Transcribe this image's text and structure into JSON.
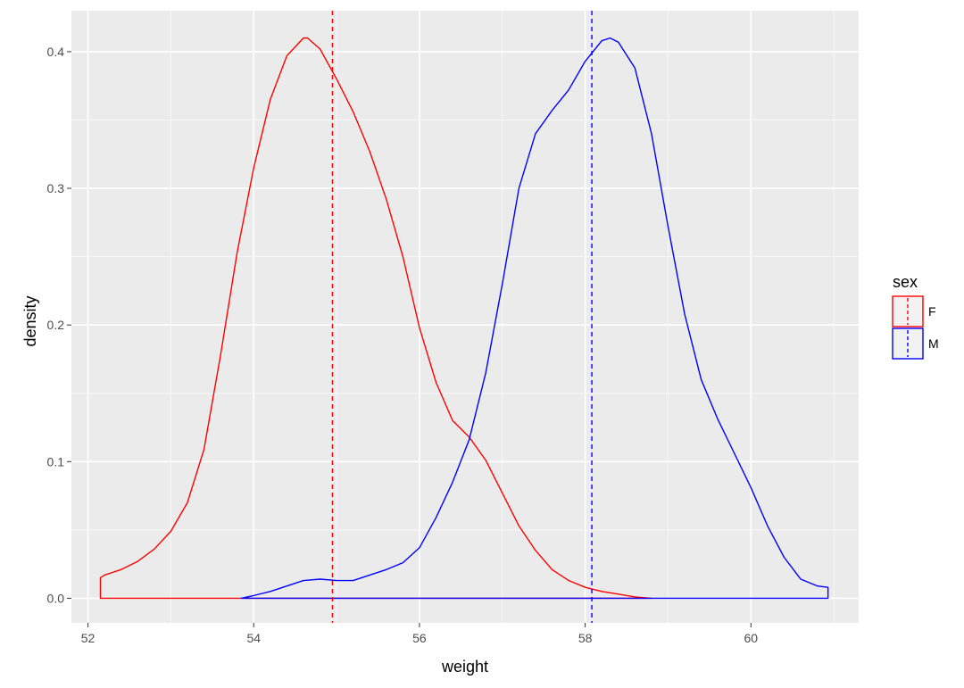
{
  "chart_data": {
    "type": "area",
    "xlabel": "weight",
    "ylabel": "density",
    "xlim": [
      51.8,
      61.3
    ],
    "ylim": [
      -0.018,
      0.43
    ],
    "x_ticks": [
      52,
      54,
      56,
      58,
      60
    ],
    "x_tick_labels": [
      "52",
      "54",
      "56",
      "58",
      "60"
    ],
    "y_ticks": [
      0.0,
      0.1,
      0.2,
      0.3,
      0.4
    ],
    "y_tick_labels": [
      "0.0",
      "0.1",
      "0.2",
      "0.3",
      "0.4"
    ],
    "grid": true,
    "legend": {
      "title": "sex",
      "position": "right",
      "entries": [
        "F",
        "M"
      ]
    },
    "series": [
      {
        "name": "F",
        "color": "#ff0000",
        "mean": 54.95,
        "x": [
          52.15,
          52.2,
          52.4,
          52.6,
          52.8,
          53.0,
          53.2,
          53.4,
          53.6,
          53.8,
          54.0,
          54.2,
          54.4,
          54.6,
          54.65,
          54.8,
          55.0,
          55.2,
          55.4,
          55.6,
          55.8,
          56.0,
          56.2,
          56.4,
          56.6,
          56.8,
          57.0,
          57.2,
          57.4,
          57.6,
          57.8,
          58.0,
          58.2,
          58.4,
          58.6,
          58.8
        ],
        "y": [
          0.015,
          0.017,
          0.021,
          0.027,
          0.036,
          0.049,
          0.07,
          0.109,
          0.178,
          0.253,
          0.315,
          0.365,
          0.397,
          0.41,
          0.41,
          0.402,
          0.38,
          0.356,
          0.327,
          0.292,
          0.25,
          0.198,
          0.158,
          0.13,
          0.118,
          0.101,
          0.077,
          0.053,
          0.035,
          0.021,
          0.013,
          0.008,
          0.005,
          0.003,
          0.001,
          0.0
        ]
      },
      {
        "name": "M",
        "color": "#0000ff",
        "mean": 58.08,
        "x": [
          53.85,
          54.0,
          54.2,
          54.4,
          54.6,
          54.8,
          55.0,
          55.2,
          55.4,
          55.6,
          55.8,
          56.0,
          56.2,
          56.4,
          56.6,
          56.8,
          57.0,
          57.2,
          57.4,
          57.6,
          57.8,
          58.0,
          58.2,
          58.3,
          58.4,
          58.6,
          58.8,
          59.0,
          59.2,
          59.4,
          59.6,
          59.8,
          60.0,
          60.2,
          60.4,
          60.6,
          60.8,
          60.93
        ],
        "y": [
          0.0,
          0.002,
          0.005,
          0.009,
          0.013,
          0.014,
          0.013,
          0.013,
          0.017,
          0.021,
          0.026,
          0.037,
          0.059,
          0.085,
          0.116,
          0.165,
          0.23,
          0.3,
          0.34,
          0.357,
          0.372,
          0.393,
          0.408,
          0.41,
          0.407,
          0.388,
          0.34,
          0.272,
          0.208,
          0.16,
          0.131,
          0.106,
          0.081,
          0.053,
          0.03,
          0.014,
          0.009,
          0.008
        ]
      }
    ]
  }
}
